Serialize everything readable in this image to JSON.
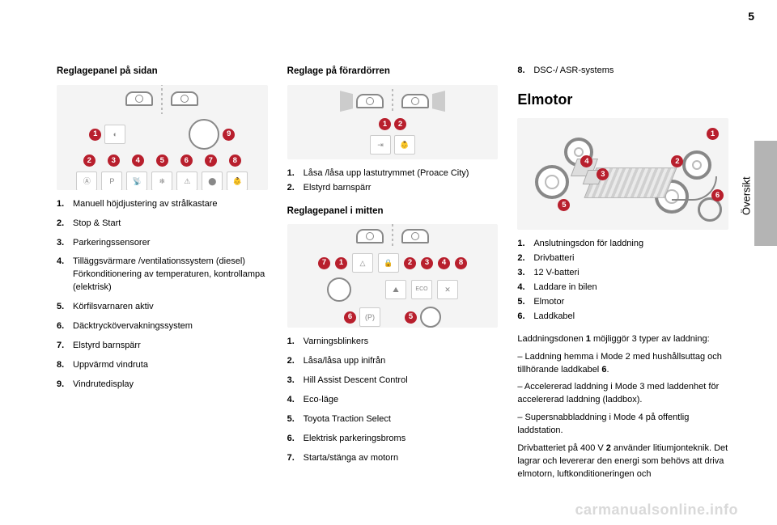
{
  "page_number": "5",
  "side_tab_label": "Översikt",
  "watermark": "carmanualsonline.info",
  "col1": {
    "heading": "Reglagepanel på sidan",
    "figA": {
      "badges_top_left": "1",
      "badges_top_right": "9",
      "badge_row": [
        "2",
        "3",
        "4",
        "5",
        "6",
        "7",
        "8"
      ]
    },
    "items": [
      {
        "num": "1.",
        "text": "Manuell höjdjustering av strålkastare"
      },
      {
        "num": "2.",
        "text": "Stop & Start"
      },
      {
        "num": "3.",
        "text": "Parkeringssensorer"
      },
      {
        "num": "4.",
        "text": "Tilläggsvärmare /ventilationssystem (diesel) Förkonditionering av temperaturen, kontrollampa (elektrisk)"
      },
      {
        "num": "5.",
        "text": "Körfilsvarnaren aktiv"
      },
      {
        "num": "6.",
        "text": "Däcktryckövervakningssystem"
      },
      {
        "num": "7.",
        "text": "Elstyrd barnspärr"
      },
      {
        "num": "8.",
        "text": "Uppvärmd vindruta"
      },
      {
        "num": "9.",
        "text": "Vindrutedisplay"
      }
    ]
  },
  "col2": {
    "headingB": "Reglage på förardörren",
    "figB": {
      "badges": [
        "1",
        "2"
      ]
    },
    "itemsB": [
      {
        "num": "1.",
        "text": "Låsa /låsa upp lastutrymmet (Proace City)"
      },
      {
        "num": "2.",
        "text": "Elstyrd barnspärr"
      }
    ],
    "headingC": "Reglagepanel i mitten",
    "figC": {
      "row_top": [
        "7",
        "1",
        "2",
        "3",
        "4",
        "8"
      ],
      "row_bottom": [
        "6",
        "5"
      ]
    },
    "itemsC": [
      {
        "num": "1.",
        "text": "Varningsblinkers"
      },
      {
        "num": "2.",
        "text": "Låsa/låsa upp inifrån"
      },
      {
        "num": "3.",
        "text": "Hill Assist Descent Control"
      },
      {
        "num": "4.",
        "text": "Eco-läge"
      },
      {
        "num": "5.",
        "text": "Toyota Traction Select"
      },
      {
        "num": "6.",
        "text": "Elektrisk parkeringsbroms"
      },
      {
        "num": "7.",
        "text": "Starta/stänga av motorn"
      }
    ]
  },
  "col3": {
    "continued_item": {
      "num": "8.",
      "text": "DSC-/ ASR-systems"
    },
    "heading": "Elmotor",
    "figD": {
      "badges": [
        "1",
        "2",
        "3",
        "4",
        "5",
        "6"
      ]
    },
    "itemsD": [
      {
        "num": "1.",
        "text": "Anslutningsdon för laddning"
      },
      {
        "num": "2.",
        "text": "Drivbatteri"
      },
      {
        "num": "3.",
        "text": "12 V-batteri"
      },
      {
        "num": "4.",
        "text": "Laddare in bilen"
      },
      {
        "num": "5.",
        "text": "Elmotor"
      },
      {
        "num": "6.",
        "text": "Laddkabel"
      }
    ],
    "paragraphs": [
      {
        "pre": "Laddningsdonen ",
        "bold": "1",
        "post": " möjliggör 3 typer av laddning:"
      },
      {
        "pre": "– Laddning hemma i Mode 2 med hushållsuttag och tillhörande laddkabel ",
        "bold": "6",
        "post": "."
      },
      {
        "pre": "– Accelererad laddning i Mode 3 med laddenhet för accelererad laddning (laddbox).",
        "bold": "",
        "post": ""
      },
      {
        "pre": "– Supersnabbladdning i Mode 4 på offentlig laddstation.",
        "bold": "",
        "post": ""
      },
      {
        "pre": "Drivbatteriet på 400 V ",
        "bold": "2",
        "post": " använder litiumjonteknik. Det lagrar och levererar den energi som behövs att driva elmotorn, luftkonditioneringen och"
      }
    ]
  }
}
